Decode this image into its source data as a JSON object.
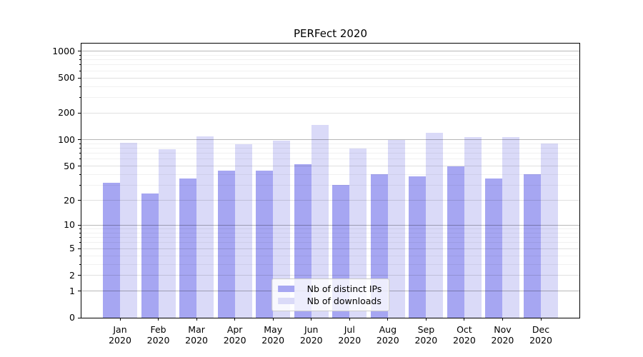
{
  "chart_data": {
    "type": "bar",
    "title": "PERFect 2020",
    "categories": [
      "Jan 2020",
      "Feb 2020",
      "Mar 2020",
      "Apr 2020",
      "May 2020",
      "Jun 2020",
      "Jul 2020",
      "Aug 2020",
      "Sep 2020",
      "Oct 2020",
      "Nov 2020",
      "Dec 2020"
    ],
    "series": [
      {
        "name": "Nb of distinct IPs",
        "color": "#a6a6f2",
        "values": [
          32,
          24,
          36,
          44,
          44,
          52,
          30,
          40,
          38,
          50,
          36,
          40
        ]
      },
      {
        "name": "Nb of downloads",
        "color": "#dadaf8",
        "values": [
          92,
          78,
          110,
          89,
          97,
          147,
          79,
          100,
          120,
          107,
          107,
          91
        ]
      }
    ],
    "y_axis": {
      "scale": "log1p",
      "ticks": [
        0,
        1,
        2,
        5,
        10,
        20,
        50,
        100,
        200,
        500,
        1000
      ],
      "max": 1220,
      "decade_gridlines": [
        1,
        10,
        100,
        1000
      ],
      "mid_gridlines": [
        2,
        5,
        20,
        50,
        200,
        500
      ],
      "minor_gridlines": [
        3,
        4,
        6,
        7,
        8,
        9,
        30,
        40,
        60,
        70,
        80,
        90,
        300,
        400,
        600,
        700,
        800,
        900
      ]
    },
    "grid": "on",
    "legend_position": "lower center",
    "xlabel": "",
    "ylabel": ""
  },
  "colors": {
    "spine": "#000000",
    "background": "#ffffff"
  }
}
